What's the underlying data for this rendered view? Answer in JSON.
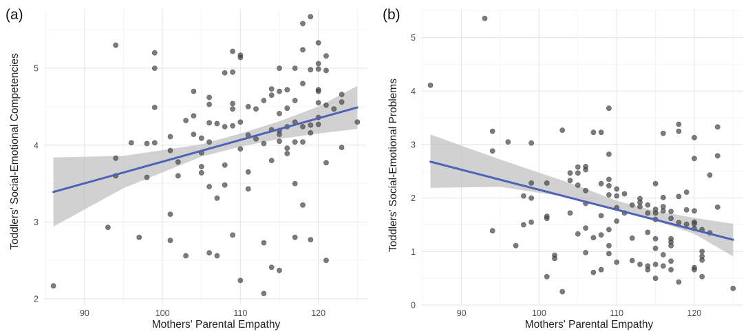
{
  "chart_data": [
    {
      "type": "scatter",
      "panel_label": "(a)",
      "title": "",
      "xlabel": "Mothers' Parental Empathy",
      "ylabel": "Toddlers' Social-Emotional Competencies",
      "xlim": [
        84.8,
        126.3
      ],
      "ylim": [
        1.92,
        5.78
      ],
      "x_ticks": [
        90,
        100,
        110,
        120
      ],
      "y_ticks": [
        2,
        3,
        4,
        5
      ],
      "grid": true,
      "colors": {
        "points": "#4a4a4a",
        "fit": "#4f63b5",
        "band": "#bdbdbd"
      },
      "fit_line": {
        "x": [
          86,
          125
        ],
        "y": [
          3.39,
          4.49
        ]
      },
      "confidence_band": {
        "x": [
          86,
          95,
          105,
          110,
          115,
          120,
          125
        ],
        "lower": [
          2.94,
          3.44,
          3.85,
          3.98,
          4.08,
          4.15,
          4.21
        ],
        "upper": [
          3.84,
          3.86,
          4.01,
          4.15,
          4.31,
          4.5,
          4.77
        ]
      },
      "points": [
        {
          "x": 86,
          "y": 2.17
        },
        {
          "x": 93,
          "y": 2.93
        },
        {
          "x": 94,
          "y": 5.3
        },
        {
          "x": 94,
          "y": 3.83
        },
        {
          "x": 94,
          "y": 3.6
        },
        {
          "x": 96,
          "y": 4.03
        },
        {
          "x": 97,
          "y": 2.8
        },
        {
          "x": 98,
          "y": 4.02
        },
        {
          "x": 98,
          "y": 3.58
        },
        {
          "x": 99,
          "y": 5.2
        },
        {
          "x": 99,
          "y": 5.0
        },
        {
          "x": 99,
          "y": 4.49
        },
        {
          "x": 99,
          "y": 4.03
        },
        {
          "x": 101,
          "y": 4.11
        },
        {
          "x": 101,
          "y": 3.93
        },
        {
          "x": 101,
          "y": 3.1
        },
        {
          "x": 101,
          "y": 2.76
        },
        {
          "x": 102,
          "y": 3.78
        },
        {
          "x": 102,
          "y": 3.6
        },
        {
          "x": 103,
          "y": 4.32
        },
        {
          "x": 103,
          "y": 2.56
        },
        {
          "x": 104,
          "y": 4.7
        },
        {
          "x": 104,
          "y": 4.38
        },
        {
          "x": 104,
          "y": 4.14
        },
        {
          "x": 105,
          "y": 4.09
        },
        {
          "x": 105,
          "y": 3.9
        },
        {
          "x": 105,
          "y": 3.72
        },
        {
          "x": 105,
          "y": 3.64
        },
        {
          "x": 106,
          "y": 4.62
        },
        {
          "x": 106,
          "y": 4.53
        },
        {
          "x": 106,
          "y": 4.29
        },
        {
          "x": 106,
          "y": 4.04
        },
        {
          "x": 106,
          "y": 3.46
        },
        {
          "x": 106,
          "y": 2.6
        },
        {
          "x": 107,
          "y": 4.28
        },
        {
          "x": 107,
          "y": 3.31
        },
        {
          "x": 107,
          "y": 2.56
        },
        {
          "x": 108,
          "y": 4.94
        },
        {
          "x": 108,
          "y": 4.24
        },
        {
          "x": 108,
          "y": 3.74
        },
        {
          "x": 108,
          "y": 3.48
        },
        {
          "x": 109,
          "y": 5.22
        },
        {
          "x": 109,
          "y": 4.95
        },
        {
          "x": 109,
          "y": 4.54
        },
        {
          "x": 109,
          "y": 4.47
        },
        {
          "x": 109,
          "y": 4.25
        },
        {
          "x": 109,
          "y": 2.83
        },
        {
          "x": 110,
          "y": 5.17
        },
        {
          "x": 110,
          "y": 5.14
        },
        {
          "x": 110,
          "y": 4.3
        },
        {
          "x": 110,
          "y": 3.95
        },
        {
          "x": 110,
          "y": 2.24
        },
        {
          "x": 111,
          "y": 4.5
        },
        {
          "x": 111,
          "y": 4.13
        },
        {
          "x": 111,
          "y": 3.65
        },
        {
          "x": 111,
          "y": 3.43
        },
        {
          "x": 112,
          "y": 4.47
        },
        {
          "x": 112,
          "y": 4.08
        },
        {
          "x": 113,
          "y": 4.58
        },
        {
          "x": 113,
          "y": 4.02
        },
        {
          "x": 113,
          "y": 2.73
        },
        {
          "x": 113,
          "y": 2.07
        },
        {
          "x": 114,
          "y": 4.73
        },
        {
          "x": 114,
          "y": 4.65
        },
        {
          "x": 114,
          "y": 4.2
        },
        {
          "x": 114,
          "y": 3.8
        },
        {
          "x": 114,
          "y": 2.41
        },
        {
          "x": 115,
          "y": 5.0
        },
        {
          "x": 115,
          "y": 4.7
        },
        {
          "x": 115,
          "y": 4.41
        },
        {
          "x": 115,
          "y": 4.19
        },
        {
          "x": 115,
          "y": 4.14
        },
        {
          "x": 115,
          "y": 4.05
        },
        {
          "x": 115,
          "y": 2.37
        },
        {
          "x": 116,
          "y": 4.72
        },
        {
          "x": 116,
          "y": 4.48
        },
        {
          "x": 116,
          "y": 4.24
        },
        {
          "x": 116,
          "y": 3.96
        },
        {
          "x": 116,
          "y": 3.89
        },
        {
          "x": 117,
          "y": 5.0
        },
        {
          "x": 117,
          "y": 4.58
        },
        {
          "x": 117,
          "y": 4.3
        },
        {
          "x": 117,
          "y": 4.04
        },
        {
          "x": 117,
          "y": 3.5
        },
        {
          "x": 117,
          "y": 2.8
        },
        {
          "x": 118,
          "y": 5.58
        },
        {
          "x": 118,
          "y": 5.24
        },
        {
          "x": 118,
          "y": 4.8
        },
        {
          "x": 118,
          "y": 4.24
        },
        {
          "x": 118,
          "y": 4.04
        },
        {
          "x": 118,
          "y": 3.22
        },
        {
          "x": 119,
          "y": 5.67
        },
        {
          "x": 119,
          "y": 4.98
        },
        {
          "x": 119,
          "y": 4.26
        },
        {
          "x": 119,
          "y": 4.16
        },
        {
          "x": 119,
          "y": 2.77
        },
        {
          "x": 120,
          "y": 5.33
        },
        {
          "x": 120,
          "y": 5.06
        },
        {
          "x": 120,
          "y": 4.99
        },
        {
          "x": 120,
          "y": 4.72
        },
        {
          "x": 120,
          "y": 4.7
        },
        {
          "x": 120,
          "y": 4.55
        },
        {
          "x": 120,
          "y": 4.36
        },
        {
          "x": 120,
          "y": 4.27
        },
        {
          "x": 121,
          "y": 5.16
        },
        {
          "x": 121,
          "y": 4.97
        },
        {
          "x": 121,
          "y": 4.52
        },
        {
          "x": 121,
          "y": 3.77
        },
        {
          "x": 121,
          "y": 2.5
        },
        {
          "x": 122,
          "y": 4.47
        },
        {
          "x": 123,
          "y": 4.66
        },
        {
          "x": 123,
          "y": 4.56
        },
        {
          "x": 123,
          "y": 3.97
        },
        {
          "x": 125,
          "y": 4.3
        }
      ]
    },
    {
      "type": "scatter",
      "panel_label": "(b)",
      "title": "",
      "xlabel": "Mothers' Parental Empathy",
      "ylabel": "Toddlers' Social-Emotional Problems",
      "xlim": [
        84.8,
        126.3
      ],
      "ylim": [
        0,
        5.55
      ],
      "x_ticks": [
        90,
        100,
        110,
        120
      ],
      "y_ticks": [
        0,
        1,
        2,
        3,
        4,
        5
      ],
      "grid": true,
      "colors": {
        "points": "#4a4a4a",
        "fit": "#4f63b5",
        "band": "#bdbdbd"
      },
      "fit_line": {
        "x": [
          86,
          125
        ],
        "y": [
          2.68,
          1.22
        ]
      },
      "confidence_band": {
        "x": [
          86,
          95,
          105,
          110,
          115,
          120,
          125
        ],
        "lower": [
          2.19,
          2.21,
          1.99,
          1.78,
          1.58,
          1.33,
          0.91
        ],
        "upper": [
          3.19,
          2.72,
          2.23,
          1.95,
          1.76,
          1.63,
          1.52
        ]
      },
      "points": [
        {
          "x": 86,
          "y": 4.11
        },
        {
          "x": 93,
          "y": 5.36
        },
        {
          "x": 94,
          "y": 3.25
        },
        {
          "x": 94,
          "y": 2.88
        },
        {
          "x": 94,
          "y": 1.39
        },
        {
          "x": 96,
          "y": 3.05
        },
        {
          "x": 97,
          "y": 1.11
        },
        {
          "x": 98,
          "y": 2.04
        },
        {
          "x": 98,
          "y": 1.5
        },
        {
          "x": 99,
          "y": 3.03
        },
        {
          "x": 99,
          "y": 2.28
        },
        {
          "x": 99,
          "y": 2.0
        },
        {
          "x": 99,
          "y": 1.55
        },
        {
          "x": 101,
          "y": 2.28
        },
        {
          "x": 101,
          "y": 1.66
        },
        {
          "x": 101,
          "y": 1.62
        },
        {
          "x": 101,
          "y": 0.53
        },
        {
          "x": 102,
          "y": 0.93
        },
        {
          "x": 102,
          "y": 0.87
        },
        {
          "x": 103,
          "y": 3.27
        },
        {
          "x": 103,
          "y": 0.25
        },
        {
          "x": 104,
          "y": 2.47
        },
        {
          "x": 104,
          "y": 2.33
        },
        {
          "x": 104,
          "y": 1.72
        },
        {
          "x": 105,
          "y": 2.58
        },
        {
          "x": 105,
          "y": 2.47
        },
        {
          "x": 105,
          "y": 2.24
        },
        {
          "x": 105,
          "y": 1.33
        },
        {
          "x": 106,
          "y": 2.59
        },
        {
          "x": 106,
          "y": 2.53
        },
        {
          "x": 106,
          "y": 2.14
        },
        {
          "x": 106,
          "y": 1.9
        },
        {
          "x": 106,
          "y": 1.44
        },
        {
          "x": 106,
          "y": 0.98
        },
        {
          "x": 107,
          "y": 3.23
        },
        {
          "x": 107,
          "y": 1.26
        },
        {
          "x": 107,
          "y": 0.61
        },
        {
          "x": 108,
          "y": 3.23
        },
        {
          "x": 108,
          "y": 2.27
        },
        {
          "x": 108,
          "y": 1.67
        },
        {
          "x": 108,
          "y": 1.31
        },
        {
          "x": 108,
          "y": 0.66
        },
        {
          "x": 109,
          "y": 3.68
        },
        {
          "x": 109,
          "y": 2.82
        },
        {
          "x": 109,
          "y": 2.35
        },
        {
          "x": 109,
          "y": 2.23
        },
        {
          "x": 109,
          "y": 2.06
        },
        {
          "x": 109,
          "y": 1.41
        },
        {
          "x": 109,
          "y": 1.11
        },
        {
          "x": 109,
          "y": 0.96
        },
        {
          "x": 110,
          "y": 2.17
        },
        {
          "x": 110,
          "y": 2.04
        },
        {
          "x": 110,
          "y": 1.82
        },
        {
          "x": 110,
          "y": 1.57
        },
        {
          "x": 110,
          "y": 0.8
        },
        {
          "x": 111,
          "y": 2.08
        },
        {
          "x": 111,
          "y": 1.72
        },
        {
          "x": 112,
          "y": 1.87
        },
        {
          "x": 112,
          "y": 1.25
        },
        {
          "x": 112,
          "y": 0.83
        },
        {
          "x": 113,
          "y": 1.99
        },
        {
          "x": 113,
          "y": 1.92
        },
        {
          "x": 113,
          "y": 1.84
        },
        {
          "x": 113,
          "y": 0.76
        },
        {
          "x": 114,
          "y": 1.87
        },
        {
          "x": 114,
          "y": 1.72
        },
        {
          "x": 114,
          "y": 1.36
        },
        {
          "x": 114,
          "y": 0.73
        },
        {
          "x": 114,
          "y": 0.66
        },
        {
          "x": 115,
          "y": 2.27
        },
        {
          "x": 115,
          "y": 1.79
        },
        {
          "x": 115,
          "y": 1.72
        },
        {
          "x": 115,
          "y": 1.6
        },
        {
          "x": 115,
          "y": 1.24
        },
        {
          "x": 115,
          "y": 1.06
        },
        {
          "x": 115,
          "y": 0.76
        },
        {
          "x": 115,
          "y": 0.5
        },
        {
          "x": 116,
          "y": 3.21
        },
        {
          "x": 116,
          "y": 2.01
        },
        {
          "x": 116,
          "y": 1.84
        },
        {
          "x": 116,
          "y": 1.76
        },
        {
          "x": 116,
          "y": 0.94
        },
        {
          "x": 116,
          "y": 0.73
        },
        {
          "x": 117,
          "y": 1.75
        },
        {
          "x": 117,
          "y": 1.62
        },
        {
          "x": 117,
          "y": 1.24
        },
        {
          "x": 117,
          "y": 1.18
        },
        {
          "x": 117,
          "y": 1.11
        },
        {
          "x": 117,
          "y": 0.82
        },
        {
          "x": 117,
          "y": 0.66
        },
        {
          "x": 118,
          "y": 3.38
        },
        {
          "x": 118,
          "y": 3.25
        },
        {
          "x": 118,
          "y": 2.03
        },
        {
          "x": 118,
          "y": 1.54
        },
        {
          "x": 118,
          "y": 0.43
        },
        {
          "x": 119,
          "y": 2.11
        },
        {
          "x": 119,
          "y": 1.78
        },
        {
          "x": 119,
          "y": 1.51
        },
        {
          "x": 120,
          "y": 3.13
        },
        {
          "x": 120,
          "y": 2.74
        },
        {
          "x": 120,
          "y": 1.76
        },
        {
          "x": 120,
          "y": 1.55
        },
        {
          "x": 120,
          "y": 1.52
        },
        {
          "x": 120,
          "y": 1.43
        },
        {
          "x": 120,
          "y": 0.7
        },
        {
          "x": 120,
          "y": 0.66
        },
        {
          "x": 121,
          "y": 1.41
        },
        {
          "x": 121,
          "y": 1.0
        },
        {
          "x": 121,
          "y": 0.91
        },
        {
          "x": 121,
          "y": 0.84
        },
        {
          "x": 121,
          "y": 0.53
        },
        {
          "x": 122,
          "y": 2.43
        },
        {
          "x": 122,
          "y": 1.35
        },
        {
          "x": 123,
          "y": 3.33
        },
        {
          "x": 123,
          "y": 2.79
        },
        {
          "x": 123,
          "y": 1.83
        },
        {
          "x": 125,
          "y": 0.31
        }
      ]
    }
  ]
}
